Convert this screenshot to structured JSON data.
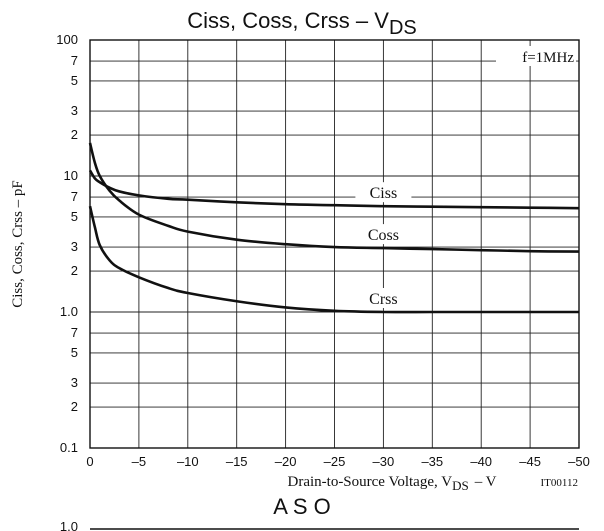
{
  "chart_data": {
    "type": "line",
    "title": "Ciss, Coss, Crss – V",
    "title_sub": "DS",
    "xlabel": "Drain-to-Source Voltage, V",
    "xlabel_sub": "DS",
    "xlabel_unit": "– V",
    "ylabel": "Ciss, Coss, Crss – pF",
    "annotation": "f=1MHz",
    "code": "IT00112",
    "next_title": "A S O",
    "next_top_tick": "1.0",
    "y_scale": "log",
    "xlim": [
      0,
      -50
    ],
    "ylim": [
      0.1,
      100
    ],
    "x_ticks": [
      "0",
      "–5",
      "–10",
      "–15",
      "–20",
      "–25",
      "–30",
      "–35",
      "–40",
      "–45",
      "–50"
    ],
    "y_major_ticks": [
      "0.1",
      "1.0",
      "10",
      "100"
    ],
    "y_minor_ticks": [
      "2",
      "3",
      "5",
      "7"
    ],
    "grid": true,
    "series": [
      {
        "name": "Ciss",
        "x": [
          0,
          -0.5,
          -1,
          -2,
          -3,
          -5,
          -8,
          -10,
          -15,
          -20,
          -25,
          -30,
          -35,
          -40,
          -45,
          -50
        ],
        "y": [
          11,
          9.6,
          9.0,
          8.2,
          7.7,
          7.2,
          6.8,
          6.7,
          6.4,
          6.2,
          6.1,
          6.0,
          5.95,
          5.9,
          5.85,
          5.8
        ]
      },
      {
        "name": "Coss",
        "x": [
          0,
          -0.5,
          -1,
          -2,
          -3,
          -5,
          -8,
          -10,
          -15,
          -20,
          -25,
          -30,
          -35,
          -40,
          -45,
          -50
        ],
        "y": [
          17.5,
          12.5,
          10,
          7.8,
          6.6,
          5.2,
          4.3,
          3.9,
          3.4,
          3.15,
          3.0,
          2.95,
          2.9,
          2.85,
          2.8,
          2.78
        ]
      },
      {
        "name": "Crss",
        "x": [
          0,
          -0.5,
          -1,
          -2,
          -3,
          -5,
          -8,
          -10,
          -15,
          -20,
          -25,
          -30,
          -35,
          -40,
          -45,
          -50
        ],
        "y": [
          6,
          4.2,
          3.1,
          2.4,
          2.1,
          1.8,
          1.5,
          1.38,
          1.2,
          1.08,
          1.02,
          1.0,
          1.0,
          1.0,
          1.0,
          1.0
        ]
      }
    ]
  }
}
